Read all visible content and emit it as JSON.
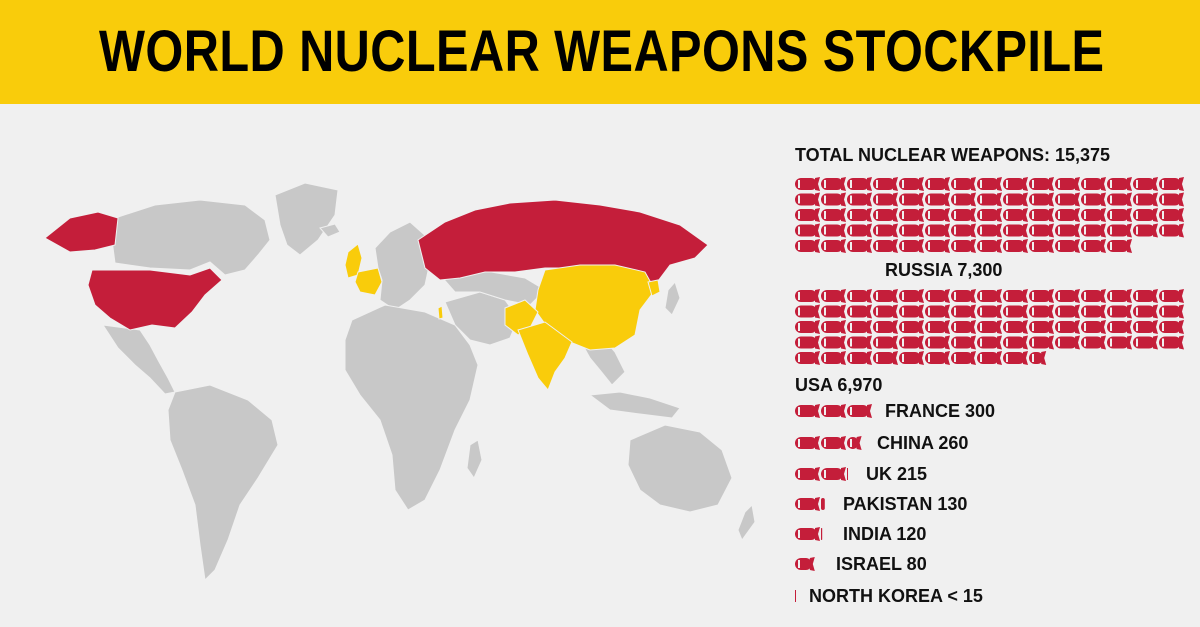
{
  "title": "WORLD NUCLEAR WEAPONS STOCKPILE",
  "colors": {
    "header": "#f9cc0b",
    "background": "#f0f0f0",
    "land": "#c8c8c8",
    "nuclear_red": "#c41e3a",
    "nuclear_yellow": "#f9cc0b"
  },
  "map": {
    "red_countries": [
      "USA",
      "Russia"
    ],
    "yellow_countries": [
      "UK",
      "France",
      "China",
      "India",
      "Pakistan",
      "Israel",
      "North Korea"
    ]
  },
  "chart_data": {
    "type": "bar",
    "title": "TOTAL NUCLEAR WEAPONS: 15,375",
    "categories": [
      "RUSSIA",
      "USA",
      "FRANCE",
      "CHINA",
      "UK",
      "PAKISTAN",
      "INDIA",
      "ISRAEL",
      "NORTH KOREA"
    ],
    "values": [
      7300,
      6970,
      300,
      260,
      215,
      130,
      120,
      80,
      15
    ],
    "labels": [
      "RUSSIA 7,300",
      "USA 6,970",
      "FRANCE 300",
      "CHINA 260",
      "UK 215",
      "PAKISTAN 130",
      "INDIA 120",
      "ISRAEL 80",
      "NORTH KOREA < 15"
    ]
  }
}
